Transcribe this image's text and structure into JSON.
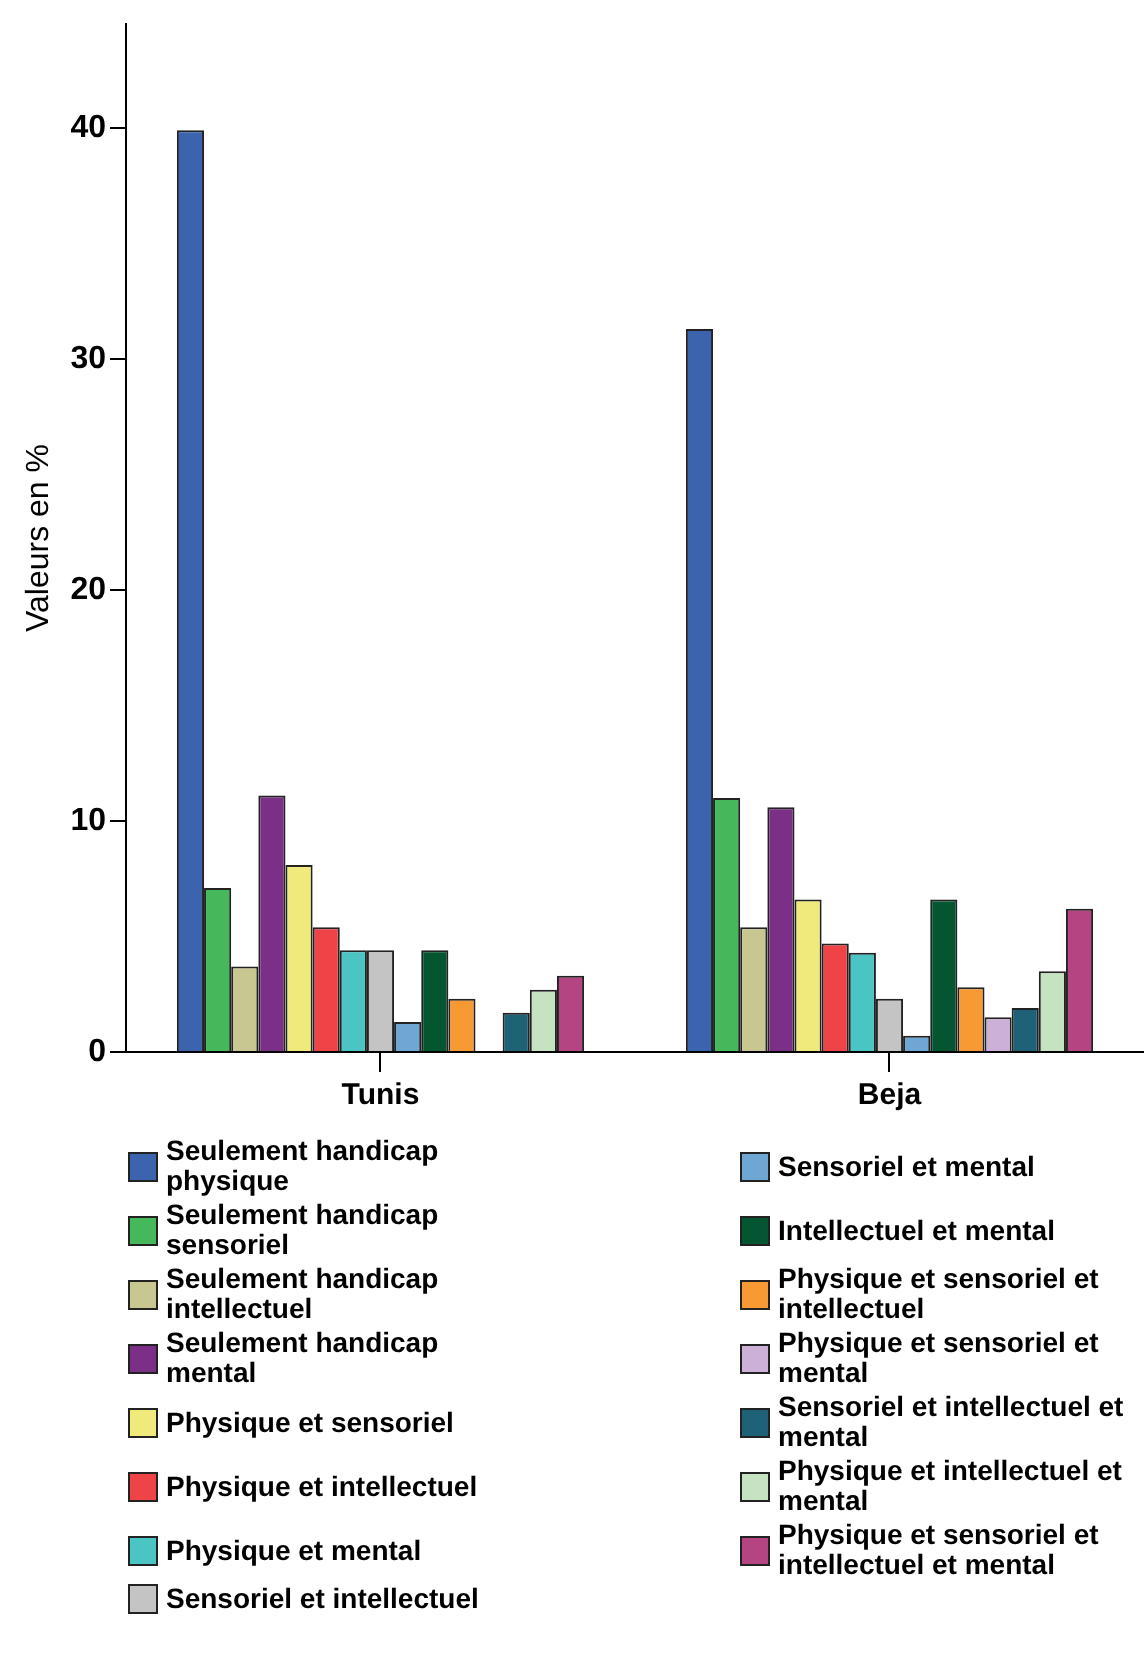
{
  "chart_data": {
    "type": "bar",
    "ylabel": "Valeurs en %",
    "categories": [
      "Tunis",
      "Beja"
    ],
    "series": [
      {
        "name": "Seulement handicap physique",
        "color": "#3c63ad",
        "values": [
          39.9,
          31.3
        ]
      },
      {
        "name": "Seulement handicap sensoriel",
        "color": "#46b85c",
        "values": [
          7.1,
          11.0
        ]
      },
      {
        "name": "Seulement handicap intellectuel",
        "color": "#c8c792",
        "values": [
          3.7,
          5.4
        ]
      },
      {
        "name": "Seulement handicap mental",
        "color": "#7b2f87",
        "values": [
          11.1,
          10.6
        ]
      },
      {
        "name": "Physique et sensoriel",
        "color": "#f0ea7c",
        "values": [
          8.1,
          6.6
        ]
      },
      {
        "name": "Physique et intellectuel",
        "color": "#ee4448",
        "values": [
          5.4,
          4.7
        ]
      },
      {
        "name": "Physique et mental",
        "color": "#4ac5c3",
        "values": [
          4.4,
          4.3
        ]
      },
      {
        "name": "Sensoriel et intellectuel",
        "color": "#c3c4c3",
        "values": [
          4.4,
          2.3
        ]
      },
      {
        "name": "Sensoriel et mental",
        "color": "#6ea6d4",
        "values": [
          1.3,
          0.7
        ]
      },
      {
        "name": "Intellectuel et mental",
        "color": "#045630",
        "values": [
          4.4,
          6.6
        ]
      },
      {
        "name": "Physique et sensoriel et intellectuel",
        "color": "#f79a34",
        "values": [
          2.3,
          2.8
        ]
      },
      {
        "name": "Physique et sensoriel et mental",
        "color": "#cdb0d7",
        "values": [
          null,
          1.5
        ]
      },
      {
        "name": "Sensoriel et intellectuel et mental",
        "color": "#1f6177",
        "values": [
          1.7,
          1.9
        ]
      },
      {
        "name": "Physique et intellectuel et mental",
        "color": "#c5e3c0",
        "values": [
          2.7,
          3.5
        ]
      },
      {
        "name": "Physique et sensoriel et intellectuel et mental",
        "color": "#b54582",
        "values": [
          3.3,
          6.2
        ]
      }
    ],
    "ylim": [
      0,
      44.5
    ],
    "yticks": [
      0,
      10,
      20,
      30,
      40
    ],
    "grid": false,
    "legend": "bottom"
  }
}
